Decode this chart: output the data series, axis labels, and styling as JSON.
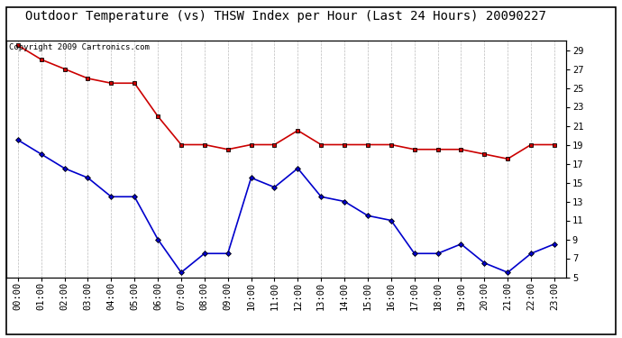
{
  "title": "Outdoor Temperature (vs) THSW Index per Hour (Last 24 Hours) 20090227",
  "copyright_text": "Copyright 2009 Cartronics.com",
  "hours": [
    "00:00",
    "01:00",
    "02:00",
    "03:00",
    "04:00",
    "05:00",
    "06:00",
    "07:00",
    "08:00",
    "09:00",
    "10:00",
    "11:00",
    "12:00",
    "13:00",
    "14:00",
    "15:00",
    "16:00",
    "17:00",
    "18:00",
    "19:00",
    "20:00",
    "21:00",
    "22:00",
    "23:00"
  ],
  "red_data": [
    29.5,
    28.0,
    27.0,
    26.0,
    25.5,
    25.5,
    22.0,
    19.0,
    19.0,
    18.5,
    19.0,
    19.0,
    20.5,
    19.0,
    19.0,
    19.0,
    19.0,
    18.5,
    18.5,
    18.5,
    18.0,
    17.5,
    19.0,
    19.0
  ],
  "blue_data": [
    19.5,
    18.0,
    16.5,
    15.5,
    13.5,
    13.5,
    9.0,
    5.5,
    7.5,
    7.5,
    15.5,
    14.5,
    16.5,
    13.5,
    13.0,
    11.5,
    11.0,
    7.5,
    7.5,
    8.5,
    6.5,
    5.5,
    7.5,
    8.5
  ],
  "red_color": "#cc0000",
  "blue_color": "#0000cc",
  "marker_color": "#000000",
  "ylim": [
    5.0,
    30.0
  ],
  "yticks": [
    5.0,
    7.0,
    9.0,
    11.0,
    13.0,
    15.0,
    17.0,
    19.0,
    21.0,
    23.0,
    25.0,
    27.0,
    29.0
  ],
  "bg_color": "#ffffff",
  "grid_color": "#bbbbbb",
  "title_fontsize": 10,
  "copyright_fontsize": 6.5,
  "tick_fontsize": 7.5
}
